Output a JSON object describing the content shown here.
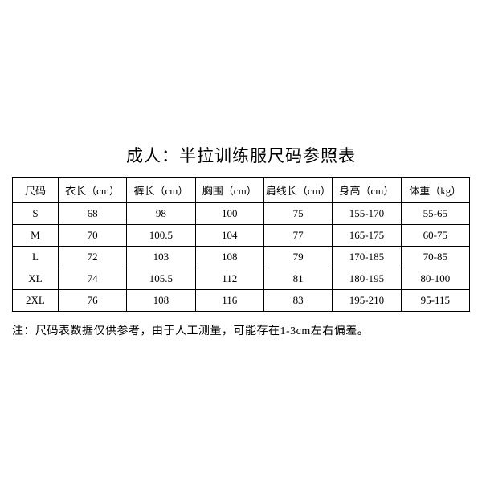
{
  "title": "成人：半拉训练服尺码参照表",
  "columns": [
    "尺码",
    "衣长（cm）",
    "裤长（cm）",
    "胸围（cm）",
    "肩线长（cm）",
    "身高（cm）",
    "体重（kg）"
  ],
  "rows": [
    [
      "S",
      "68",
      "98",
      "100",
      "75",
      "155-170",
      "55-65"
    ],
    [
      "M",
      "70",
      "100.5",
      "104",
      "77",
      "165-175",
      "60-75"
    ],
    [
      "L",
      "72",
      "103",
      "108",
      "79",
      "170-185",
      "70-85"
    ],
    [
      "XL",
      "74",
      "105.5",
      "112",
      "81",
      "180-195",
      "80-100"
    ],
    [
      "2XL",
      "76",
      "108",
      "116",
      "83",
      "195-210",
      "95-115"
    ]
  ],
  "note": "注：尺码表数据仅供参考，由于人工测量，可能存在1-3cm左右偏差。",
  "colors": {
    "background": "#ffffff",
    "text": "#000000",
    "border": "#000000"
  },
  "fonts": {
    "title_size": 21,
    "cell_size": 13,
    "note_size": 14
  }
}
